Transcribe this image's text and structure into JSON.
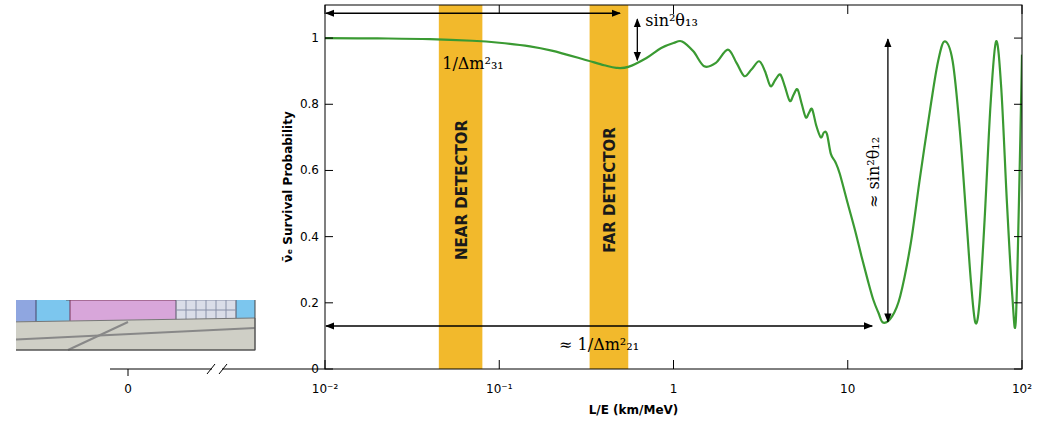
{
  "chart_data": {
    "type": "line",
    "x_label": "L/E (km/MeV)",
    "y_label": "ν̄ₑ Survival Probability",
    "log": "x",
    "xlim": [
      0.01,
      100
    ],
    "xticks": [
      {
        "value": 0.01,
        "label": "10⁻²"
      },
      {
        "value": 0.1,
        "label": "10⁻¹"
      },
      1,
      10,
      {
        "value": 100,
        "label": "10²"
      }
    ],
    "ylim": [
      0,
      1.1
    ],
    "yticks": [
      0,
      0.2,
      0.4,
      0.6,
      0.8,
      1
    ],
    "break_tick": 0,
    "color": "#3a9a32",
    "x": [
      0.01,
      0.02,
      0.04,
      0.07,
      0.1,
      0.15,
      0.2,
      0.3,
      0.4,
      0.47,
      0.55,
      0.7,
      0.85,
      1.0,
      1.12,
      1.3,
      1.5,
      1.75,
      2.05,
      2.3,
      2.55,
      2.8,
      3.1,
      3.35,
      3.6,
      3.85,
      4.1,
      4.35,
      4.65,
      4.9,
      5.15,
      5.45,
      5.75,
      6.0,
      6.25,
      6.6,
      7.0,
      7.3,
      7.6,
      8.0,
      8.5,
      9.0,
      10,
      11,
      12,
      13,
      14,
      15,
      16,
      18,
      20,
      23,
      26,
      30,
      33,
      36,
      40,
      44,
      48,
      51,
      54,
      57,
      61,
      66,
      71,
      76,
      82,
      88,
      92,
      96,
      100
    ],
    "values": [
      1.0,
      0.999,
      0.997,
      0.992,
      0.986,
      0.975,
      0.962,
      0.937,
      0.918,
      0.91,
      0.913,
      0.94,
      0.97,
      0.985,
      0.99,
      0.96,
      0.915,
      0.925,
      0.965,
      0.925,
      0.885,
      0.905,
      0.93,
      0.9,
      0.855,
      0.875,
      0.89,
      0.855,
      0.81,
      0.83,
      0.845,
      0.8,
      0.76,
      0.775,
      0.785,
      0.735,
      0.7,
      0.715,
      0.71,
      0.65,
      0.625,
      0.59,
      0.5,
      0.42,
      0.34,
      0.27,
      0.21,
      0.17,
      0.14,
      0.16,
      0.22,
      0.38,
      0.58,
      0.8,
      0.93,
      0.99,
      0.93,
      0.72,
      0.45,
      0.26,
      0.14,
      0.2,
      0.45,
      0.8,
      0.99,
      0.85,
      0.5,
      0.22,
      0.14,
      0.5,
      0.95
    ],
    "bands": [
      {
        "label": "NEAR DETECTOR",
        "range": [
          0.045,
          0.08
        ],
        "color": "#f2b92c"
      },
      {
        "label": "FAR DETECTOR",
        "range": [
          0.33,
          0.55
        ],
        "color": "#f2b92c"
      }
    ],
    "annotations": [
      {
        "text": "1/Δm²₃₁",
        "x": [
          0.01,
          0.5
        ],
        "y": 1.075
      },
      {
        "text": "sin²θ₁₃",
        "x": 0.62,
        "y": [
          0.93,
          1.06
        ]
      },
      {
        "text": "≈ 1/Δm²₂₁",
        "x": [
          0.01,
          14
        ],
        "y": 0.13
      },
      {
        "text": "≈ sin²θ₁₂",
        "x": 17,
        "y": [
          0.14,
          1.0
        ]
      }
    ]
  }
}
